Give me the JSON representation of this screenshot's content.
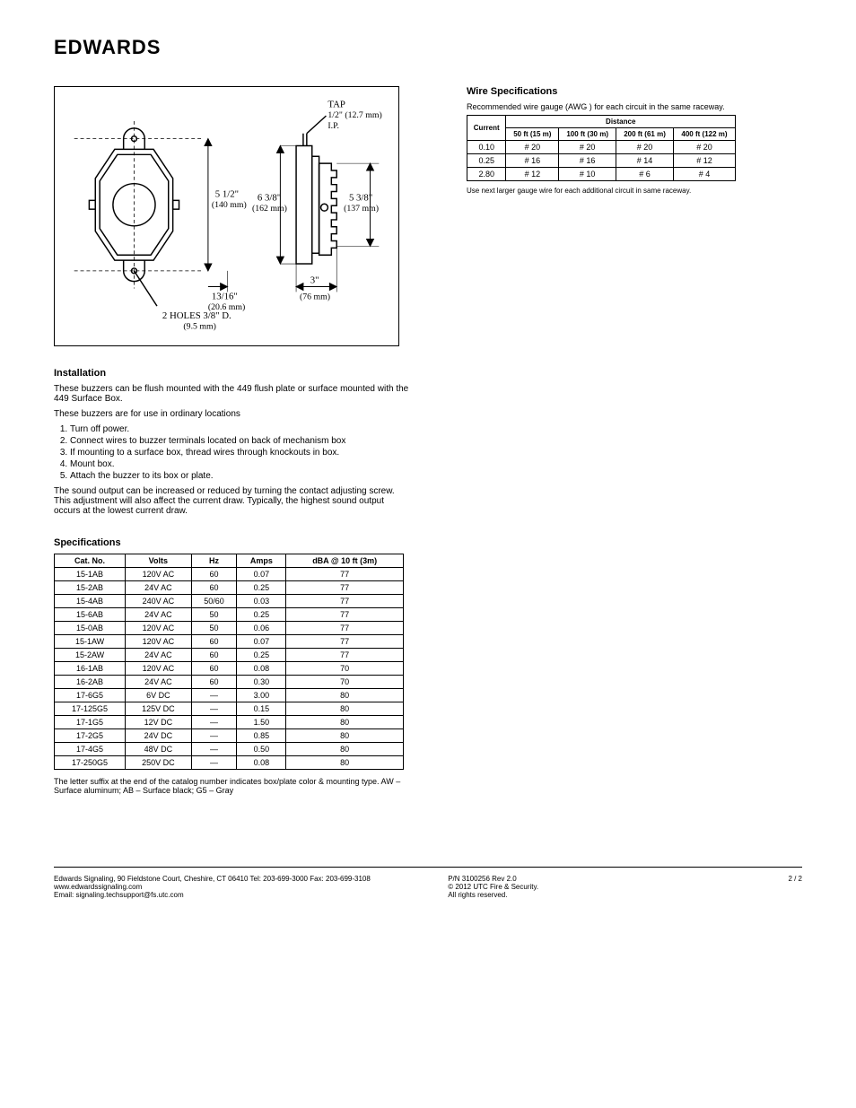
{
  "brand": "EDWARDS",
  "wireSpec": {
    "heading": "Wire Specifications",
    "intro": "Recommended wire gauge (AWG ) for each circuit in the same raceway.",
    "columns": [
      "Current",
      "",
      "",
      "",
      ""
    ],
    "subheader": [
      "",
      "50 ft (15 m)",
      "100 ft (30 m)",
      "200 ft (61 m)",
      "400 ft (122 m)"
    ],
    "rows": [
      [
        "0.10",
        "# 20",
        "# 20",
        "# 20",
        "# 20"
      ],
      [
        "0.25",
        "# 16",
        "# 16",
        "# 14",
        "# 12"
      ],
      [
        "2.80",
        "# 12",
        "# 10",
        "# 6",
        "# 4"
      ]
    ],
    "note": "Use next larger gauge wire for each additional circuit in same raceway."
  },
  "install": {
    "heading": "Installation",
    "p1": "These buzzers can be flush mounted with the 449 flush plate or surface mounted with the 449 Surface Box.",
    "p2": "These buzzers are for use in ordinary locations",
    "steps": [
      "Turn off power.",
      "Connect wires to buzzer terminals located on back of mechanism box",
      "If mounting to a surface box, thread wires through knockouts in box.",
      "Mount box.",
      "Attach the buzzer to its box or plate."
    ],
    "p3": "The sound output can be increased or reduced by turning the contact adjusting screw. This adjustment will also affect the current draw. Typically, the highest sound output occurs at the lowest current draw."
  },
  "specHeading": "Specifications",
  "specTable": {
    "columns": [
      "Cat. No.",
      "Volts",
      "Hz",
      "Amps",
      "dBA @ 10 ft (3m)"
    ],
    "rows": [
      [
        "15-1AB",
        "120V AC",
        "60",
        "0.07",
        "77"
      ],
      [
        "15-2AB",
        "24V AC",
        "60",
        "0.25",
        "77"
      ],
      [
        "15-4AB",
        "240V AC",
        "50/60",
        "0.03",
        "77"
      ],
      [
        "15-6AB",
        "24V AC",
        "50",
        "0.25",
        "77"
      ],
      [
        "15-0AB",
        "120V AC",
        "50",
        "0.06",
        "77"
      ],
      [
        "15-1AW",
        "120V AC",
        "60",
        "0.07",
        "77"
      ],
      [
        "15-2AW",
        "24V AC",
        "60",
        "0.25",
        "77"
      ],
      [
        "16-1AB",
        "120V AC",
        "60",
        "0.08",
        "70"
      ],
      [
        "16-2AB",
        "24V AC",
        "60",
        "0.30",
        "70"
      ],
      [
        "17-6G5",
        "6V DC",
        "—",
        "3.00",
        "80"
      ],
      [
        "17-125G5",
        "125V DC",
        "—",
        "0.15",
        "80"
      ],
      [
        "17-1G5",
        "12V DC",
        "—",
        "1.50",
        "80"
      ],
      [
        "17-2G5",
        "24V DC",
        "—",
        "0.85",
        "80"
      ],
      [
        "17-4G5",
        "48V DC",
        "—",
        "0.50",
        "80"
      ],
      [
        "17-250G5",
        "250V DC",
        "—",
        "0.08",
        "80"
      ]
    ]
  },
  "note": "The letter suffix at the end of the catalog number indicates box/plate color & mounting type.  AW – Surface aluminum; AB – Surface black; G5 – Gray",
  "footer": {
    "company": "Edwards Signaling, 90 Fieldstone Court, Cheshire, CT 06410   Tel: 203-699-3000 Fax: 203-699-3108",
    "web": "www.edwardssignaling.com",
    "email": "Email: signaling.techsupport@fs.utc.com",
    "pn": "P/N 3100256 Rev 2.0",
    "copyright": "© 2012 UTC Fire & Security.",
    "rights": "All rights reserved.",
    "page": "2 / 2"
  },
  "diagram": {
    "labels": {
      "tap": "TAP",
      "tap2": "1/2\" (12.7 mm)",
      "tap3": "I.P.",
      "d512": "5 1/2\"",
      "d512mm": "(140 mm)",
      "d638": "6 3/8\"",
      "d638mm": "(162 mm)",
      "d538": "5 3/8\"",
      "d538mm": "(137 mm)",
      "d1316": "13/16\"",
      "d1316mm": "(20.6 mm)",
      "d3": "3\"",
      "d3mm": "(76 mm)",
      "holes": "2 HOLES 3/8\" D.",
      "holesmm": "(9.5 mm)"
    }
  }
}
